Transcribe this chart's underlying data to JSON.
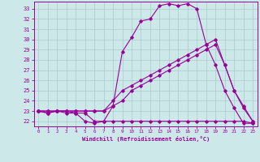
{
  "background_color": "#cce8e8",
  "line_color": "#990099",
  "grid_color": "#aacccc",
  "xlabel": "Windchill (Refroidissement éolien,°C)",
  "xlim": [
    -0.5,
    23.5
  ],
  "ylim": [
    21.5,
    33.7
  ],
  "yticks": [
    22,
    23,
    24,
    25,
    26,
    27,
    28,
    29,
    30,
    31,
    32,
    33
  ],
  "xticks": [
    0,
    1,
    2,
    3,
    4,
    5,
    6,
    7,
    8,
    9,
    10,
    11,
    12,
    13,
    14,
    15,
    16,
    17,
    18,
    19,
    20,
    21,
    22,
    23
  ],
  "series": [
    {
      "x": [
        0,
        1,
        2,
        3,
        4,
        5,
        6,
        7,
        8,
        9,
        10,
        11,
        12,
        13,
        14,
        15,
        16,
        17,
        18,
        19,
        20,
        21,
        22,
        23
      ],
      "y": [
        23,
        22.8,
        23,
        23,
        22.8,
        22.8,
        22,
        22,
        22,
        22,
        22,
        22,
        22,
        22,
        22,
        22,
        22,
        22,
        22,
        22,
        22,
        22,
        22,
        21.8
      ]
    },
    {
      "x": [
        0,
        1,
        2,
        3,
        4,
        5,
        6,
        7,
        8,
        9,
        10,
        11,
        12,
        13,
        14,
        15,
        16,
        17,
        18,
        19,
        20,
        21,
        22,
        23
      ],
      "y": [
        23,
        23,
        23,
        23,
        23,
        23,
        23,
        23,
        23.5,
        24,
        25,
        25.5,
        26,
        26.5,
        27,
        27.5,
        28,
        28.5,
        29,
        29.5,
        27.5,
        25,
        23.3,
        22
      ]
    },
    {
      "x": [
        0,
        1,
        2,
        3,
        4,
        5,
        6,
        7,
        8,
        9,
        10,
        11,
        12,
        13,
        14,
        15,
        16,
        17,
        18,
        19,
        20,
        21,
        22,
        23
      ],
      "y": [
        23,
        23,
        23,
        23,
        23,
        23,
        23,
        23,
        24,
        25,
        25.5,
        26,
        26.5,
        27,
        27.5,
        28,
        28.5,
        29,
        29.5,
        30,
        27.5,
        25,
        23.5,
        22
      ]
    },
    {
      "x": [
        0,
        1,
        2,
        3,
        4,
        5,
        6,
        7,
        8,
        9,
        10,
        11,
        12,
        13,
        14,
        15,
        16,
        17,
        18,
        19,
        20,
        21,
        22,
        23
      ],
      "y": [
        23,
        22.8,
        23,
        22.8,
        22.8,
        22,
        21.8,
        22,
        23.5,
        28.8,
        30.2,
        31.8,
        32.0,
        33.3,
        33.5,
        33.3,
        33.5,
        33,
        29.5,
        27.5,
        25.0,
        23.3,
        21.8,
        21.8
      ]
    }
  ]
}
